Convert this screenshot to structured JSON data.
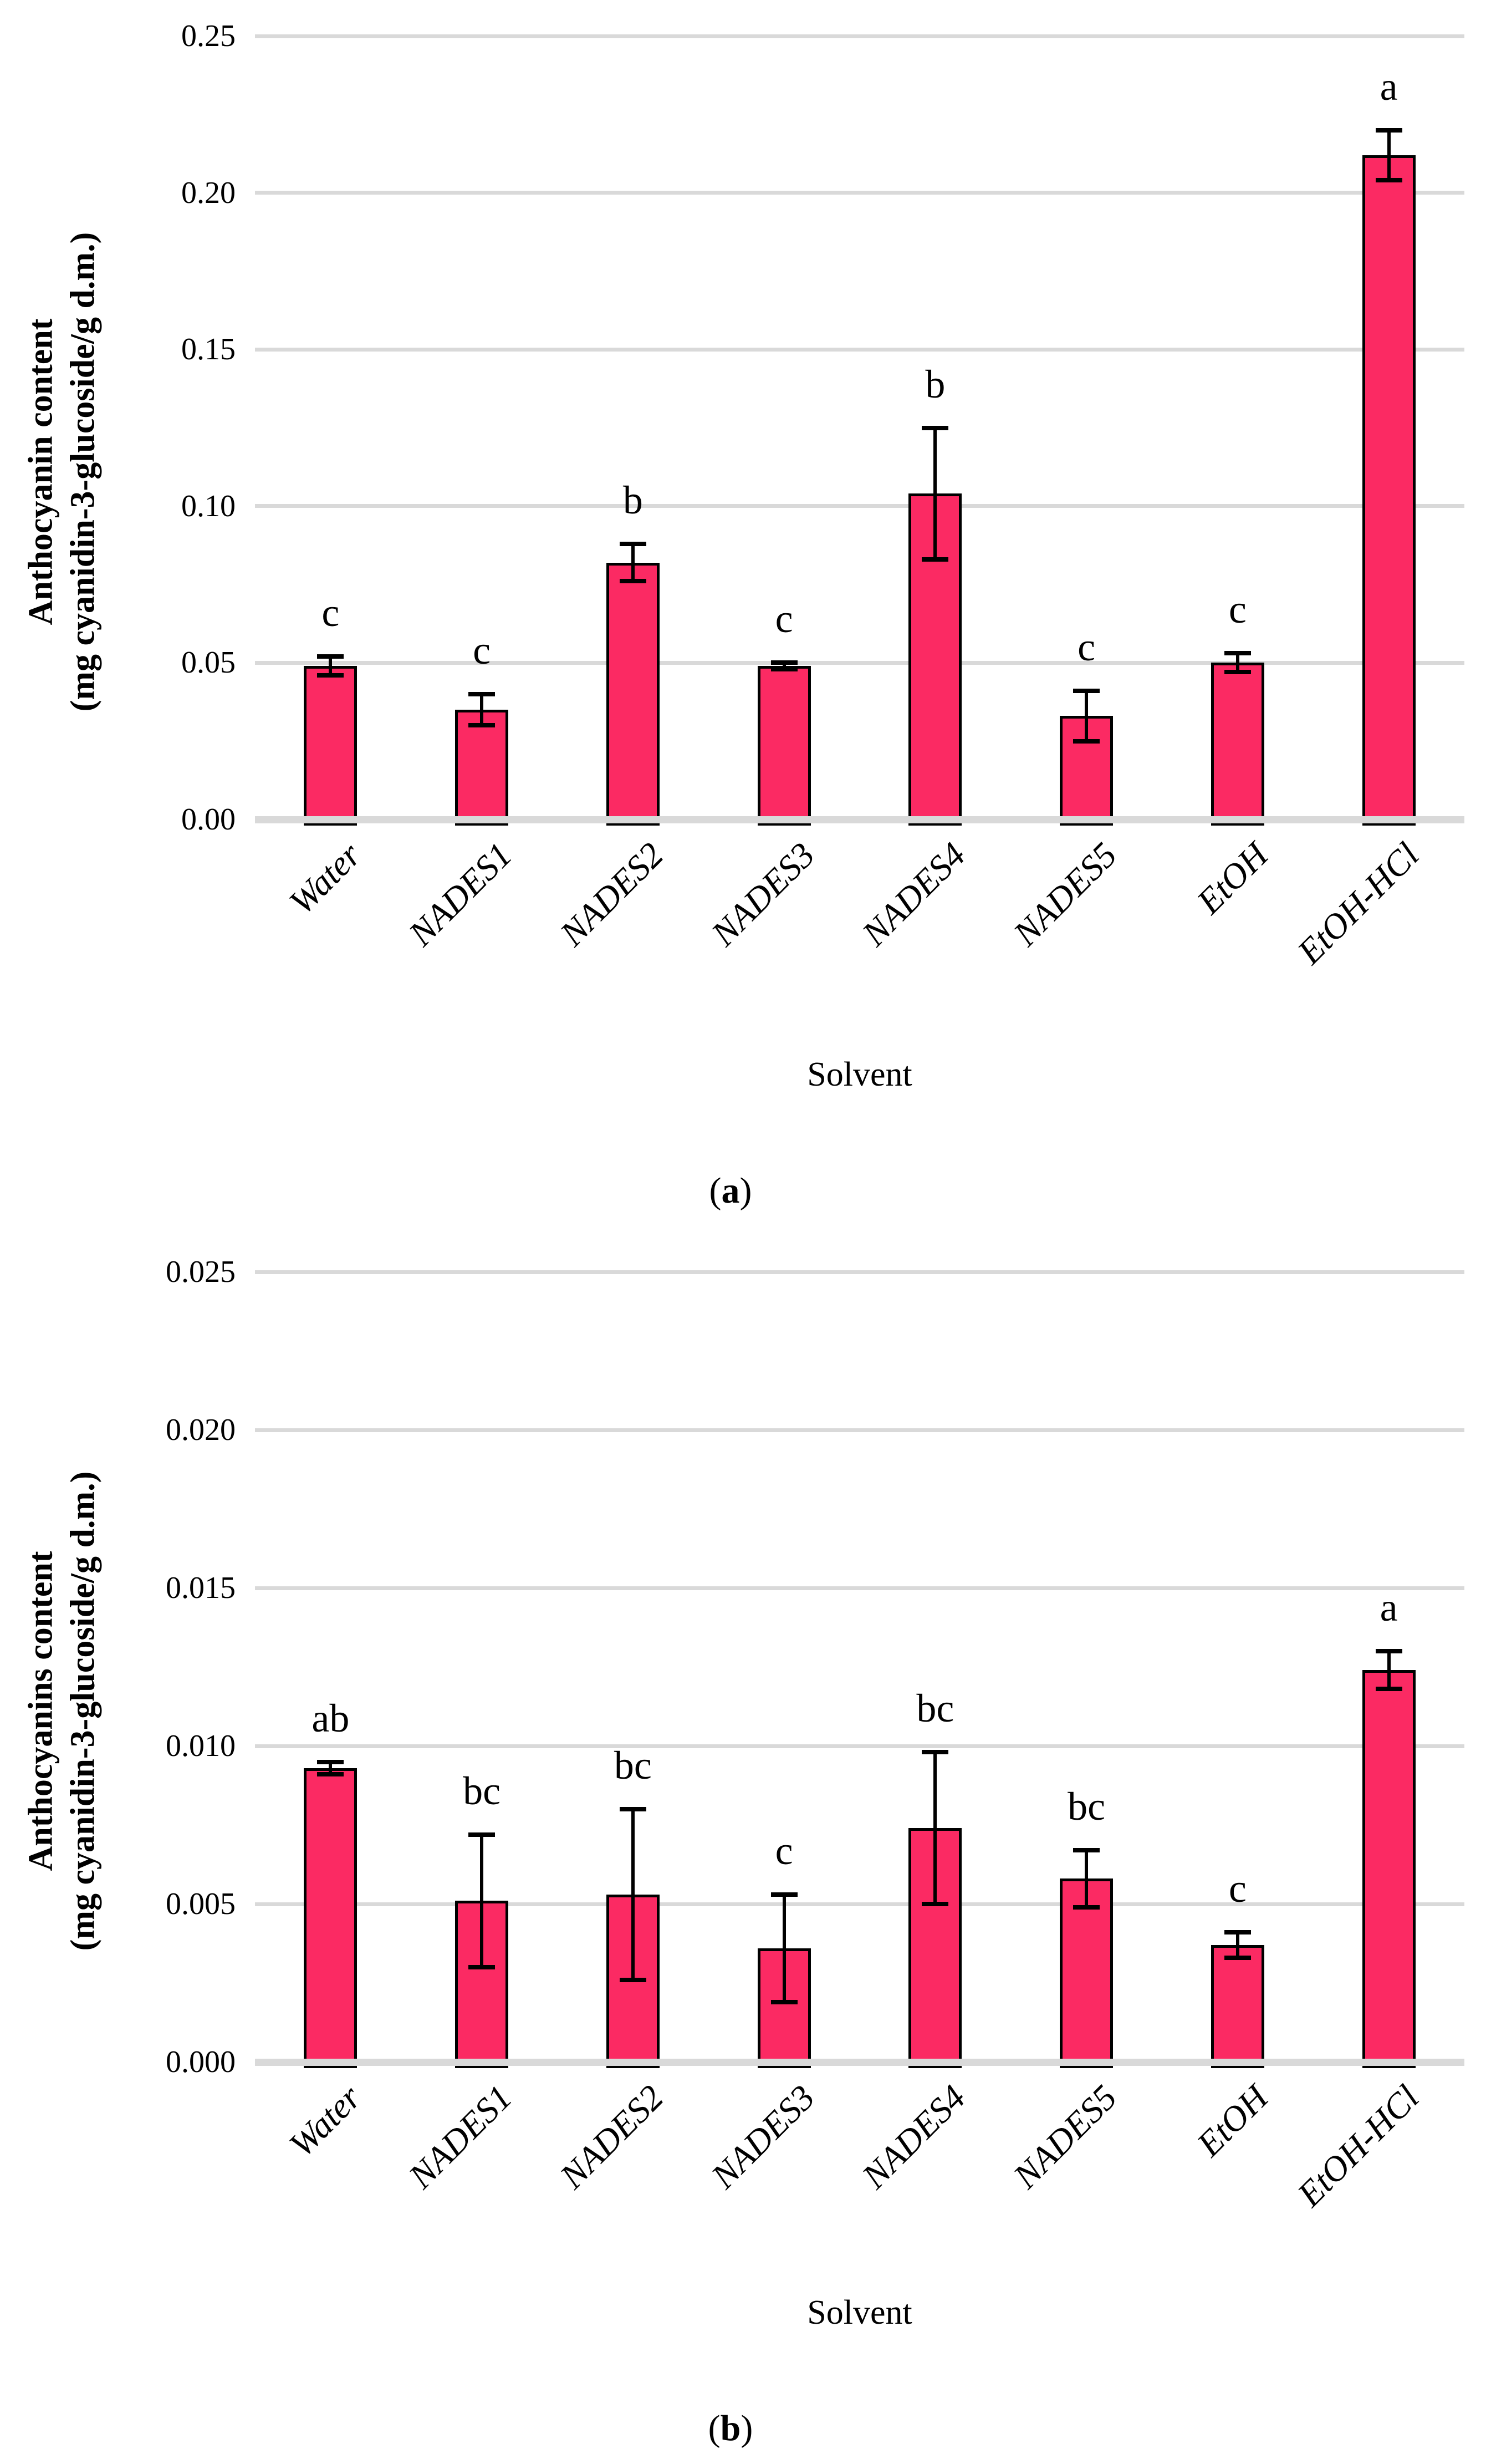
{
  "figure": {
    "panels": [
      {
        "id": "a",
        "y_axis_title_line1": "Anthocyanin content",
        "y_axis_title_line2": "(mg cyanidin-3-glucoside/g d.m.)",
        "x_axis_title": "Solvent",
        "caption_open": "(",
        "caption_letter": "a",
        "caption_close": ")"
      },
      {
        "id": "b",
        "y_axis_title_line1": "Anthocyanins content",
        "y_axis_title_line2": "(mg cyanidin-3-glucoside/g d.m.)",
        "x_axis_title": "Solvent",
        "caption_open": "(",
        "caption_letter": "b",
        "caption_close": ")"
      }
    ]
  },
  "chart_data": [
    {
      "type": "bar",
      "title": "",
      "categories": [
        "Water",
        "NADES1",
        "NADES2",
        "NADES3",
        "NADES4",
        "NADES5",
        "EtOH",
        "EtOH-HCl"
      ],
      "values": [
        0.049,
        0.035,
        0.082,
        0.049,
        0.104,
        0.033,
        0.05,
        0.212
      ],
      "errors": [
        0.003,
        0.005,
        0.006,
        0.001,
        0.021,
        0.008,
        0.003,
        0.008
      ],
      "significance_letters": [
        "c",
        "c",
        "b",
        "c",
        "b",
        "c",
        "c",
        "a"
      ],
      "xlabel": "Solvent",
      "ylabel": "Anthocyanin content (mg cyanidin-3-glucoside/g d.m.)",
      "ylim": [
        0,
        0.25
      ],
      "yticks": [
        "0.00",
        "0.05",
        "0.10",
        "0.15",
        "0.20",
        "0.25"
      ],
      "grid": true,
      "legend": false,
      "bar_color": "#fb2a63",
      "bar_border_color": "#000000",
      "gridline_color": "#d9d9d9"
    },
    {
      "type": "bar",
      "title": "",
      "categories": [
        "Water",
        "NADES1",
        "NADES2",
        "NADES3",
        "NADES4",
        "NADES5",
        "EtOH",
        "EtOH-HCl"
      ],
      "values": [
        0.0093,
        0.0051,
        0.0053,
        0.0036,
        0.0074,
        0.0058,
        0.0037,
        0.0124
      ],
      "errors": [
        0.0002,
        0.0021,
        0.0027,
        0.0017,
        0.0024,
        0.0009,
        0.0004,
        0.0006
      ],
      "significance_letters": [
        "ab",
        "bc",
        "bc",
        "c",
        "bc",
        "bc",
        "c",
        "a"
      ],
      "xlabel": "Solvent",
      "ylabel": "Anthocyanins content (mg cyanidin-3-glucoside/g d.m.)",
      "ylim": [
        0,
        0.025
      ],
      "yticks": [
        "0.000",
        "0.005",
        "0.010",
        "0.015",
        "0.020",
        "0.025"
      ],
      "grid": true,
      "legend": false,
      "bar_color": "#fb2a63",
      "bar_border_color": "#000000",
      "gridline_color": "#d9d9d9"
    }
  ]
}
